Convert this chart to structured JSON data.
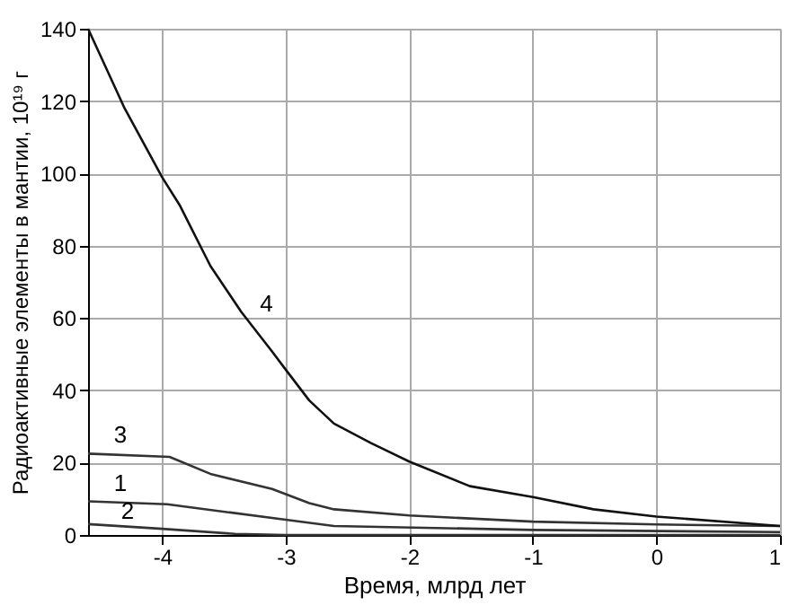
{
  "chart_data": {
    "type": "line",
    "xlabel": "Время, млрд лет",
    "ylabel": "Радиоактивные элементы в мантии, 10¹⁹ г",
    "xlim": [
      -4.6,
      1
    ],
    "xticks": [
      -4,
      -3,
      -2,
      -1,
      0,
      1
    ],
    "ylim": [
      0,
      140
    ],
    "yticks": [
      0,
      20,
      40,
      60,
      80,
      100,
      120,
      140
    ],
    "grid": true,
    "marker": "none",
    "line_style": "solid",
    "series": [
      {
        "name": "1",
        "color": "#333333",
        "x": [
          -4.6,
          -3.96,
          -3.0,
          -2.61,
          -1.0,
          1.0
        ],
        "values": [
          9.3,
          8.5,
          4.2,
          2.5,
          1.4,
          0.8
        ]
      },
      {
        "name": "2",
        "color": "#333333",
        "x": [
          -4.6,
          -4.0,
          -3.41,
          -3.0,
          1.0
        ],
        "values": [
          3.0,
          1.7,
          0.3,
          0,
          0
        ]
      },
      {
        "name": "3",
        "color": "#333333",
        "x": [
          -4.6,
          -3.94,
          -3.61,
          -3.11,
          -2.81,
          -2.61,
          -2.0,
          -1.0,
          0,
          1.0
        ],
        "values": [
          22.5,
          21.6,
          16.9,
          12.7,
          8.8,
          7.1,
          5.4,
          3.7,
          2.9,
          2.5
        ]
      },
      {
        "name": "4",
        "color": "#111111",
        "x": [
          -4.6,
          -4.31,
          -4.0,
          -3.86,
          -3.61,
          -3.36,
          -3.11,
          -3.0,
          -2.81,
          -2.61,
          -2.31,
          -2.0,
          -1.51,
          -1.0,
          -0.51,
          0,
          1.0
        ],
        "values": [
          140,
          118.4,
          98.9,
          91.3,
          74.4,
          61.7,
          50.7,
          45.7,
          37.2,
          30.8,
          25.4,
          20.3,
          13.5,
          10.5,
          7.1,
          5.1,
          2.5
        ]
      }
    ]
  }
}
